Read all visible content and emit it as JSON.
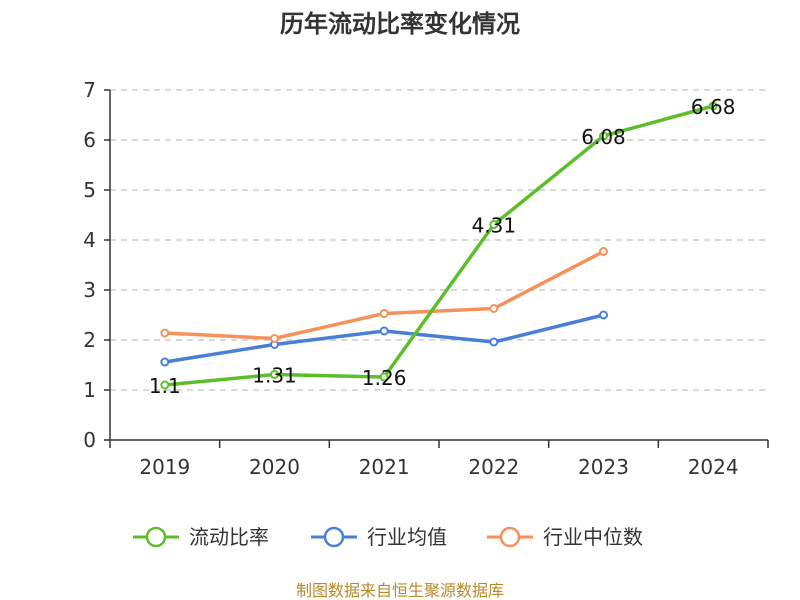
{
  "chart_data": {
    "type": "line",
    "title": "历年流动比率变化情况",
    "categories": [
      "2019",
      "2020",
      "2021",
      "2022",
      "2023",
      "2024"
    ],
    "ylim": [
      0,
      7
    ],
    "yticks": [
      "0",
      "1",
      "2",
      "3",
      "4",
      "5",
      "6",
      "7"
    ],
    "grid": true,
    "legend_position": "bottom",
    "series": [
      {
        "name": "流动比率",
        "color": "#5cbf2a",
        "values": [
          1.1,
          1.31,
          1.26,
          4.31,
          6.08,
          6.68
        ],
        "labels": [
          "1.1",
          "1.31",
          "1.26",
          "4.31",
          "6.08",
          "6.68"
        ]
      },
      {
        "name": "行业均值",
        "color": "#4a7fd6",
        "values": [
          1.56,
          1.91,
          2.18,
          1.96,
          2.5,
          null
        ]
      },
      {
        "name": "行业中位数",
        "color": "#f5915a",
        "values": [
          2.14,
          2.03,
          2.53,
          2.63,
          3.77,
          null
        ]
      }
    ]
  },
  "source": "制图数据来自恒生聚源数据库"
}
